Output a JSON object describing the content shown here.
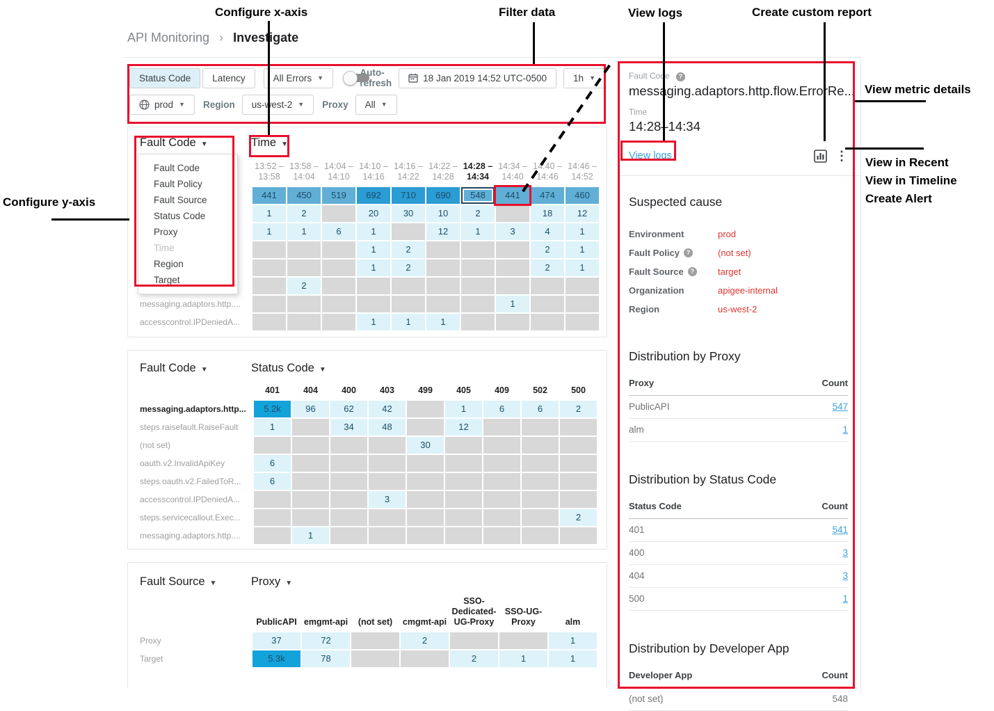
{
  "breadcrumb": {
    "section": "API Monitoring",
    "separator": "›",
    "page": "Investigate"
  },
  "filter_bar": {
    "tab_status_code": "Status Code",
    "tab_latency": "Latency",
    "errors_dropdown": "All Errors",
    "auto_refresh_label": "Auto-refresh",
    "date_value": "18 Jan 2019 14:52 UTC-0500",
    "interval_value": "1h",
    "environment_value": "prod",
    "region_label": "Region",
    "region_value": "us-west-2",
    "proxy_label": "Proxy",
    "proxy_value": "All"
  },
  "y_axis_menu": {
    "items": [
      {
        "label": "Fault Code"
      },
      {
        "label": "Fault Policy"
      },
      {
        "label": "Fault Source"
      },
      {
        "label": "Status Code"
      },
      {
        "label": "Proxy"
      },
      {
        "label": "Time",
        "disabled": true
      },
      {
        "label": "Region"
      },
      {
        "label": "Target"
      }
    ]
  },
  "matrices": [
    {
      "y_axis": "Fault Code",
      "x_axis": "Time",
      "columns": [
        {
          "from": "13:52 –",
          "to": "13:58"
        },
        {
          "from": "13:58 –",
          "to": "14:04"
        },
        {
          "from": "14:04 –",
          "to": "14:10"
        },
        {
          "from": "14:10 –",
          "to": "14:16"
        },
        {
          "from": "14:16 –",
          "to": "14:22"
        },
        {
          "from": "14:22 –",
          "to": "14:28"
        },
        {
          "from": "14:28 –",
          "to": "14:34",
          "bold": true
        },
        {
          "from": "14:34 –",
          "to": "14:40"
        },
        {
          "from": "14:40 –",
          "to": "14:46"
        },
        {
          "from": "14:46 –",
          "to": "14:52"
        }
      ],
      "rows": [
        {
          "label": "",
          "cells": [
            {
              "v": "441",
              "l": 2
            },
            {
              "v": "450",
              "l": 2
            },
            {
              "v": "519",
              "l": 2
            },
            {
              "v": "692",
              "l": 3
            },
            {
              "v": "710",
              "l": 3
            },
            {
              "v": "690",
              "l": 3
            },
            {
              "v": "548",
              "l": 2,
              "selected": true
            },
            {
              "v": "441",
              "l": 2,
              "annotated": true
            },
            {
              "v": "474",
              "l": 2
            },
            {
              "v": "460",
              "l": 2
            }
          ]
        },
        {
          "label": "",
          "cells": [
            {
              "v": "1",
              "l": 1
            },
            {
              "v": "2",
              "l": 1
            },
            null,
            {
              "v": "20",
              "l": 1
            },
            {
              "v": "30",
              "l": 1
            },
            {
              "v": "10",
              "l": 1
            },
            {
              "v": "2",
              "l": 1
            },
            null,
            {
              "v": "18",
              "l": 1
            },
            {
              "v": "12",
              "l": 1
            }
          ]
        },
        {
          "label": "",
          "cells": [
            {
              "v": "1",
              "l": 1
            },
            {
              "v": "1",
              "l": 1
            },
            {
              "v": "6",
              "l": 1
            },
            {
              "v": "1",
              "l": 1
            },
            null,
            {
              "v": "12",
              "l": 1
            },
            {
              "v": "1",
              "l": 1
            },
            {
              "v": "3",
              "l": 1
            },
            {
              "v": "4",
              "l": 1
            },
            {
              "v": "1",
              "l": 1
            }
          ]
        },
        {
          "label": "",
          "cells": [
            null,
            null,
            null,
            {
              "v": "1",
              "l": 1
            },
            {
              "v": "2",
              "l": 1
            },
            null,
            null,
            null,
            {
              "v": "2",
              "l": 1
            },
            {
              "v": "1",
              "l": 1
            }
          ]
        },
        {
          "label": "",
          "cells": [
            null,
            null,
            null,
            {
              "v": "1",
              "l": 1
            },
            {
              "v": "2",
              "l": 1
            },
            null,
            null,
            null,
            {
              "v": "2",
              "l": 1
            },
            {
              "v": "1",
              "l": 1
            }
          ]
        },
        {
          "label": "",
          "cells": [
            null,
            {
              "v": "2",
              "l": 1
            },
            null,
            null,
            null,
            null,
            null,
            null,
            null,
            null
          ]
        },
        {
          "label": "messaging.adaptors.http....",
          "cells": [
            null,
            null,
            null,
            null,
            null,
            null,
            null,
            {
              "v": "1",
              "l": 1
            },
            null,
            null
          ]
        },
        {
          "label": "accesscontrol.IPDeniedA...",
          "cells": [
            null,
            null,
            null,
            {
              "v": "1",
              "l": 1
            },
            {
              "v": "1",
              "l": 1
            },
            {
              "v": "1",
              "l": 1
            },
            null,
            null,
            null,
            null
          ]
        }
      ]
    },
    {
      "y_axis": "Fault Code",
      "x_axis": "Status Code",
      "columns": [
        "401",
        "404",
        "400",
        "403",
        "499",
        "405",
        "409",
        "502",
        "500"
      ],
      "rows": [
        {
          "label": "messaging.adaptors.http...",
          "bold": true,
          "cells": [
            {
              "v": "5.2k",
              "l": 4
            },
            {
              "v": "96",
              "l": 1
            },
            {
              "v": "62",
              "l": 1
            },
            {
              "v": "42",
              "l": 1
            },
            null,
            {
              "v": "1",
              "l": 1
            },
            {
              "v": "6",
              "l": 1
            },
            {
              "v": "6",
              "l": 1
            },
            {
              "v": "2",
              "l": 1
            }
          ]
        },
        {
          "label": "steps.raisefault.RaiseFault",
          "cells": [
            {
              "v": "1",
              "l": 1
            },
            null,
            {
              "v": "34",
              "l": 1
            },
            {
              "v": "48",
              "l": 1
            },
            null,
            {
              "v": "12",
              "l": 1
            },
            null,
            null,
            null
          ]
        },
        {
          "label": "(not set)",
          "cells": [
            null,
            null,
            null,
            null,
            {
              "v": "30",
              "l": 1
            },
            null,
            null,
            null,
            null
          ]
        },
        {
          "label": "oauth.v2.InvalidApiKey",
          "cells": [
            {
              "v": "6",
              "l": 1
            },
            null,
            null,
            null,
            null,
            null,
            null,
            null,
            null
          ]
        },
        {
          "label": "steps.oauth.v2.FailedToR...",
          "cells": [
            {
              "v": "6",
              "l": 1
            },
            null,
            null,
            null,
            null,
            null,
            null,
            null,
            null
          ]
        },
        {
          "label": "accesscontrol.IPDeniedA...",
          "cells": [
            null,
            null,
            null,
            {
              "v": "3",
              "l": 1
            },
            null,
            null,
            null,
            null,
            null
          ]
        },
        {
          "label": "steps.servicecallout.Exec...",
          "cells": [
            null,
            null,
            null,
            null,
            null,
            null,
            null,
            null,
            {
              "v": "2",
              "l": 1
            }
          ]
        },
        {
          "label": "messaging.adaptors.http....",
          "cells": [
            null,
            {
              "v": "1",
              "l": 1
            },
            null,
            null,
            null,
            null,
            null,
            null,
            null
          ]
        }
      ]
    },
    {
      "y_axis": "Fault Source",
      "x_axis": "Proxy",
      "columns": [
        "PublicAPI",
        "emgmt-api",
        "(not set)",
        "cmgmt-api",
        "SSO-Dedicated-UG-Proxy",
        "SSO-UG-Proxy",
        "alm"
      ],
      "rows": [
        {
          "label": "Proxy",
          "cells": [
            {
              "v": "37",
              "l": 1
            },
            {
              "v": "72",
              "l": 1
            },
            null,
            {
              "v": "2",
              "l": 1
            },
            null,
            null,
            {
              "v": "1",
              "l": 1
            }
          ]
        },
        {
          "label": "Target",
          "cells": [
            {
              "v": "5.3k",
              "l": 4
            },
            {
              "v": "78",
              "l": 1
            },
            null,
            null,
            {
              "v": "2",
              "l": 1
            },
            {
              "v": "1",
              "l": 1
            },
            {
              "v": "1",
              "l": 1
            }
          ]
        }
      ]
    }
  ],
  "detail_panel": {
    "fault_code_label": "Fault Code",
    "fault_code_value": "messaging.adaptors.http.flow.ErrorRe...",
    "time_label": "Time",
    "time_value": "14:28–14:34",
    "view_logs_link": "View logs",
    "suspected_cause": {
      "title": "Suspected cause",
      "rows": [
        {
          "key": "Environment",
          "value": "prod"
        },
        {
          "key": "Fault Policy",
          "help": true,
          "value": "(not set)"
        },
        {
          "key": "Fault Source",
          "help": true,
          "value": "target"
        },
        {
          "key": "Organization",
          "value": "apigee-internal"
        },
        {
          "key": "Region",
          "value": "us-west-2"
        }
      ]
    },
    "distributions": [
      {
        "title": "Distribution by Proxy",
        "col1": "Proxy",
        "col2": "Count",
        "rows": [
          {
            "name": "PublicAPI",
            "count": "547",
            "link": true
          },
          {
            "name": "alm",
            "count": "1",
            "link": true
          }
        ]
      },
      {
        "title": "Distribution by Status Code",
        "col1": "Status Code",
        "col2": "Count",
        "rows": [
          {
            "name": "401",
            "count": "541",
            "link": true
          },
          {
            "name": "400",
            "count": "3",
            "link": true
          },
          {
            "name": "404",
            "count": "3",
            "link": true
          },
          {
            "name": "500",
            "count": "1",
            "link": true
          }
        ]
      },
      {
        "title": "Distribution by Developer App",
        "col1": "Developer App",
        "col2": "Count",
        "rows": [
          {
            "name": "(not set)",
            "count": "548",
            "link": false
          }
        ]
      }
    ]
  },
  "annotations": {
    "configure_x_axis": "Configure x-axis",
    "filter_data": "Filter data",
    "view_logs": "View logs",
    "create_custom_report": "Create custom report",
    "view_metric_details": "View metric details",
    "view_in_recent": "View in Recent",
    "view_in_timeline": "View in Timeline",
    "create_alert": "Create Alert",
    "configure_y_axis": "Configure y-axis"
  }
}
